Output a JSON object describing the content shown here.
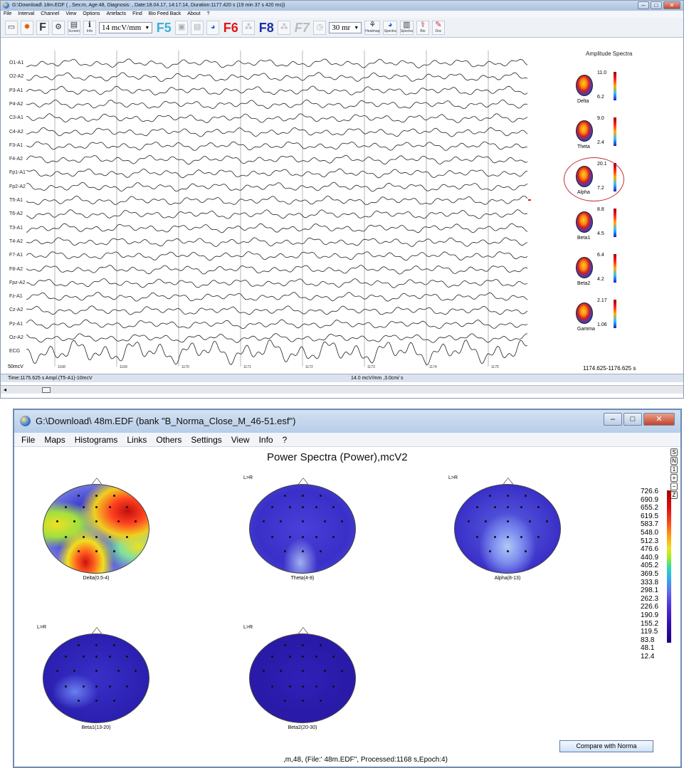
{
  "win1": {
    "title": "G:\\Download\\            18m.EDF (                        , Sex:m, Age:48, Diagnosis: , Date:18.04.17, 14:17:14, Duration:1177.420 s (19 min 37 s 420 ms))",
    "menu": [
      "File",
      "Interval",
      "Channel",
      "View",
      "Options",
      "Artefacts",
      "Find",
      "Bio Feed Back",
      "About",
      "?"
    ],
    "toolbar": {
      "scale_value": "14 mcV/mm",
      "f5": "F5",
      "f6": "F6",
      "f8": "F8",
      "f7": "F7",
      "speed_value": "30 mr",
      "screen_label": "Screen",
      "info_label": "Info",
      "heatmap_label": "Heatmap",
      "spectra_label": "Spectra",
      "spectra2_label": "Spectra",
      "bio_label": "Bio",
      "doc_label": "Doc"
    },
    "channels": [
      "O1-A1",
      "O2-A2",
      "P3-A1",
      "P4-A2",
      "C3-A1",
      "C4-A2",
      "F3-A1",
      "F4-A2",
      "Fp1-A1",
      "Fp2-A2",
      "T5-A1",
      "T6-A2",
      "T3-A1",
      "T4-A2",
      "F7-A1",
      "F8-A2",
      "Fpz-A2",
      "Fz-A1",
      "Cz-A2",
      "Pz-A1",
      "Oz-A2",
      "ECG"
    ],
    "time_ticks": [
      "1168",
      "1169",
      "1170",
      "1171",
      "1172",
      "1173",
      "1174",
      "1175"
    ],
    "amp_scale": "50mcV",
    "spectra_title": "Amplitude Spectra",
    "bands": [
      {
        "name": "Delta",
        "hi": "11.0",
        "lo": "6.2"
      },
      {
        "name": "Theta",
        "hi": "9.0",
        "lo": "2.4"
      },
      {
        "name": "Alpha",
        "hi": "20.1",
        "lo": "7.2"
      },
      {
        "name": "Beta1",
        "hi": "8.8",
        "lo": "4.5"
      },
      {
        "name": "Beta2",
        "hi": "6.4",
        "lo": "4.2"
      },
      {
        "name": "Gamma",
        "hi": "2.17",
        "lo": "1.06"
      }
    ],
    "range": "1174.625-1176.625 s",
    "status_left": "Time:1175.625 s Ampl.(T5-A1)-10mcV",
    "status_right": "14.0 mcV/mm ,3.0cm/ s"
  },
  "win2": {
    "title": "G:\\Download\\                  48m.EDF (bank  \"B_Norma_Close_M_46-51.esf\")",
    "menu": [
      "File",
      "Maps",
      "Histograms",
      "Links",
      "Others",
      "Settings",
      "View",
      "Info",
      "?"
    ],
    "plot_title": "Power Spectra (Power),mcV2",
    "side_buttons": [
      "S",
      "N",
      "1",
      "+",
      "−",
      "Z"
    ],
    "lr": "L>R",
    "maps": [
      {
        "label": "Delta(0.5-4)"
      },
      {
        "label": "Theta(4-8)"
      },
      {
        "label": "Alpha(8-13)"
      },
      {
        "label": "Beta1(13-20)"
      },
      {
        "label": "Beta2(20-30)"
      }
    ],
    "scale_values": [
      "726.6",
      "690.9",
      "655.2",
      "619.5",
      "583.7",
      "548.0",
      "512.3",
      "476.6",
      "440.9",
      "405.2",
      "369.5",
      "333.8",
      "298.1",
      "262.3",
      "226.6",
      "190.9",
      "155.2",
      "119.5",
      "83.8",
      "48.1",
      "12.4"
    ],
    "compare_button": "Compare with Norma",
    "footer": ",m,48, (File:'               48m.EDF\", Processed:1168  s,Epoch:4)"
  },
  "colors": {
    "accent": "#d21e1e",
    "cool": "#2a1fb0"
  }
}
